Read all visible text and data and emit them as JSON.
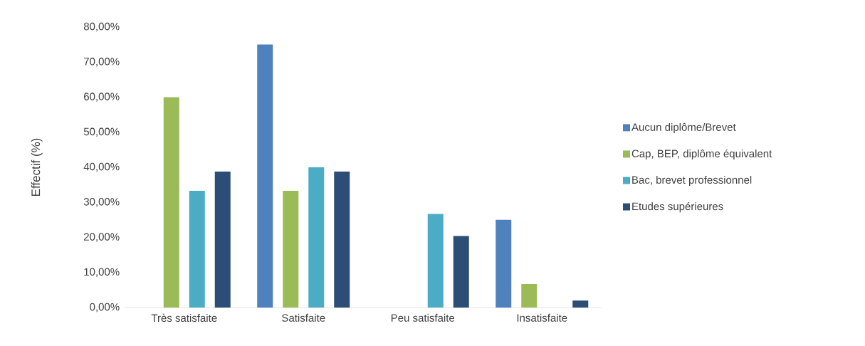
{
  "chart_data": {
    "type": "bar",
    "ylabel": "Effectif (%)",
    "categories": [
      "Très satisfaite",
      "Satisfaite",
      "Peu satisfaite",
      "Insatisfaite"
    ],
    "series": [
      {
        "name": "Aucun diplôme/Brevet",
        "color": "#4f81bd",
        "values": [
          0,
          75,
          0,
          25
        ]
      },
      {
        "name": "Cap, BEP, diplôme équivalent",
        "color": "#9bbb59",
        "values": [
          60,
          33.3,
          0,
          6.7
        ]
      },
      {
        "name": "Bac, brevet professionnel",
        "color": "#4bacc6",
        "values": [
          33.3,
          40,
          26.7,
          0
        ]
      },
      {
        "name": "Etudes supérieures",
        "color": "#2c4d75",
        "values": [
          38.8,
          38.8,
          20.4,
          2
        ]
      }
    ],
    "ylim": [
      0,
      80
    ],
    "yticks": [
      {
        "value": 0,
        "label": "0,00%"
      },
      {
        "value": 10,
        "label": "10,00%"
      },
      {
        "value": 20,
        "label": "20,00%"
      },
      {
        "value": 30,
        "label": "30,00%"
      },
      {
        "value": 40,
        "label": "40,00%"
      },
      {
        "value": 50,
        "label": "50,00%"
      },
      {
        "value": 60,
        "label": "60,00%"
      },
      {
        "value": 70,
        "label": "70,00%"
      },
      {
        "value": 80,
        "label": "80,00%"
      }
    ],
    "legend": "right"
  }
}
